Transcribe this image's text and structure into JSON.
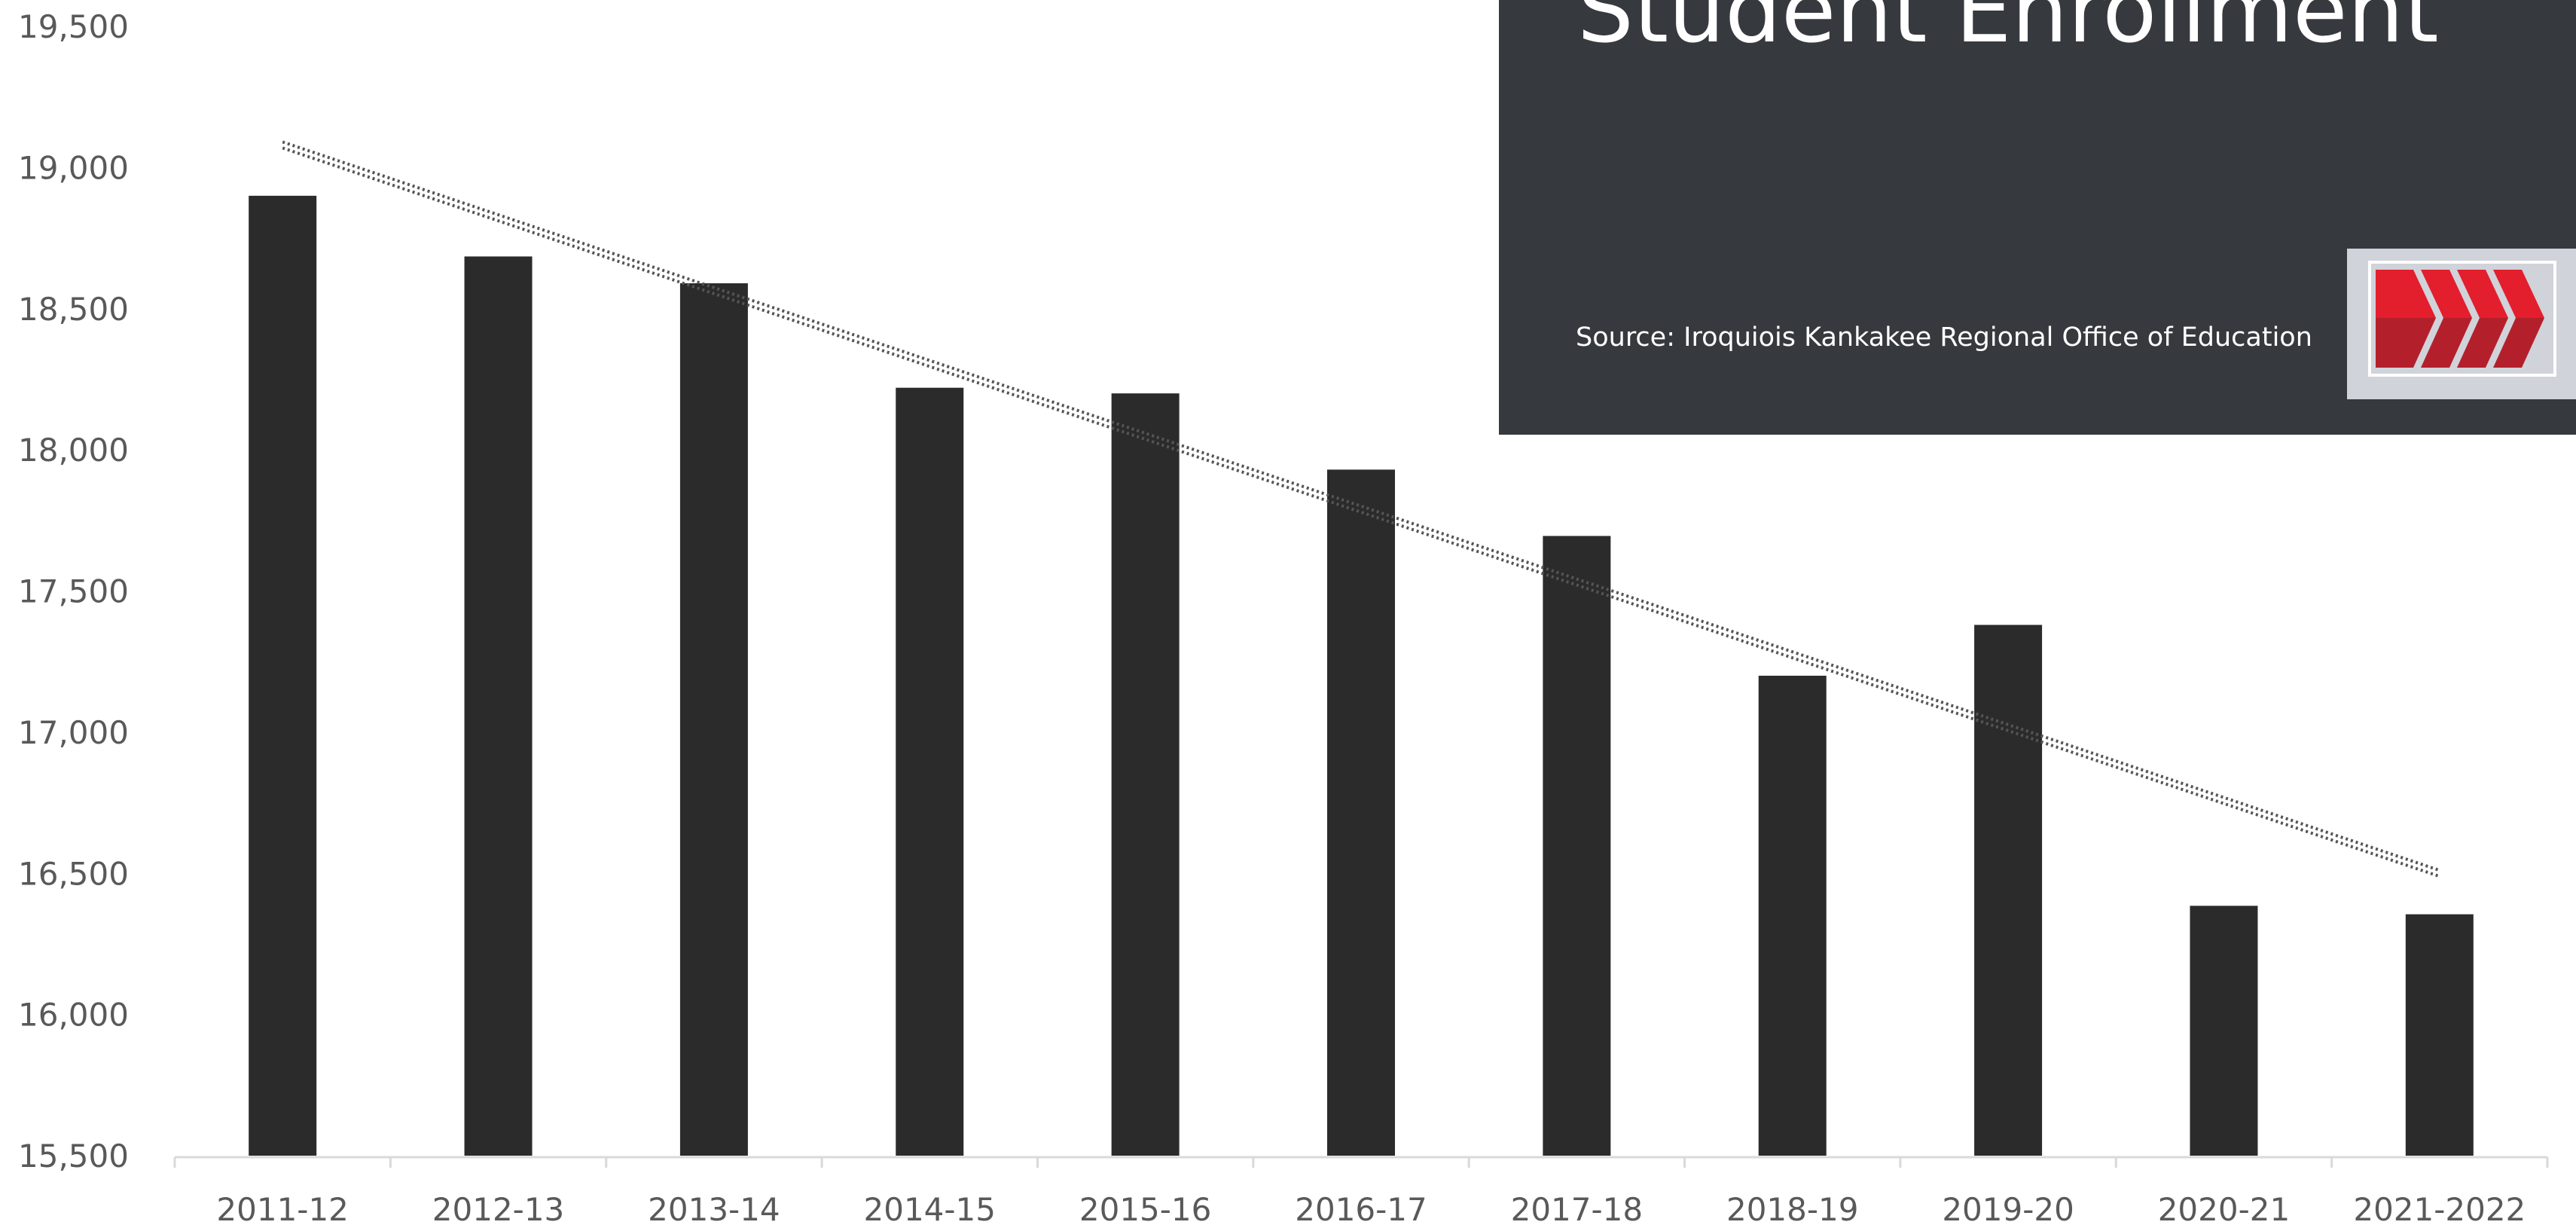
{
  "title": "Student Enrollment",
  "source": "Source: Iroquiois Kankakee Regional Office of Education",
  "logo": {
    "icon": "red-chevrons-logo",
    "colors": [
      "#e31e2d",
      "#b3202b"
    ]
  },
  "colors": {
    "bar": "#2b2b2b",
    "panel": "#36393d",
    "trendline": "#555555",
    "axis_text": "#595959"
  },
  "chart_data": {
    "type": "bar",
    "title": "Student Enrollment",
    "categories": [
      "2011-12",
      "2012-13",
      "2013-14",
      "2014-15",
      "2015-16",
      "2016-17",
      "2017-18",
      "2018-19",
      "2019-20",
      "2020-21",
      "2021-2022"
    ],
    "values": [
      18900,
      18685,
      18590,
      18220,
      18200,
      17930,
      17695,
      17200,
      17380,
      16385,
      16355
    ],
    "ylim": [
      15500,
      19500
    ],
    "yticks": [
      15500,
      16000,
      16500,
      17000,
      17500,
      18000,
      18500,
      19000,
      19500
    ],
    "ytick_labels": [
      "15,500",
      "16,000",
      "16,500",
      "17,000",
      "17,500",
      "18,000",
      "18,500",
      "19,000",
      "19,500"
    ],
    "trendline": {
      "type": "linear",
      "style": "dotted",
      "start": 19080,
      "end": 16500
    },
    "grid": false,
    "xlabel": "",
    "ylabel": ""
  }
}
